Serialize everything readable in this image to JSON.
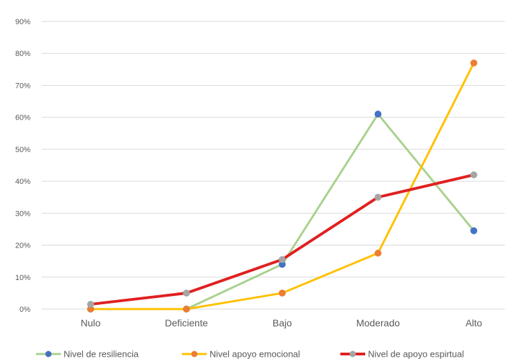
{
  "chart_data": {
    "type": "line",
    "title": "",
    "xlabel": "",
    "ylabel": "",
    "categories": [
      "Nulo",
      "Deficiente",
      "Bajo",
      "Moderado",
      "Alto"
    ],
    "ylim": [
      0,
      90
    ],
    "yticks": [
      0,
      10,
      20,
      30,
      40,
      50,
      60,
      70,
      80,
      90
    ],
    "ytick_labels": [
      "0%",
      "10%",
      "20%",
      "30%",
      "40%",
      "50%",
      "60%",
      "70%",
      "80%",
      "90%"
    ],
    "grid": true,
    "legend_position": "bottom",
    "series": [
      {
        "name": "Nivel de resiliencia",
        "values": [
          0,
          0,
          14,
          61,
          24.5
        ],
        "line_color": "#a9d18e",
        "marker_color": "#4472c4"
      },
      {
        "name": "Nivel apoyo emocional",
        "values": [
          0,
          0,
          5,
          17.5,
          77
        ],
        "line_color": "#ffc000",
        "marker_color": "#ed7d31"
      },
      {
        "name": "Nivel de apoyo espirtual",
        "values": [
          1.5,
          5,
          15.5,
          35,
          42
        ],
        "line_color": "#e02020",
        "marker_color": "#a5a5a5"
      }
    ]
  }
}
